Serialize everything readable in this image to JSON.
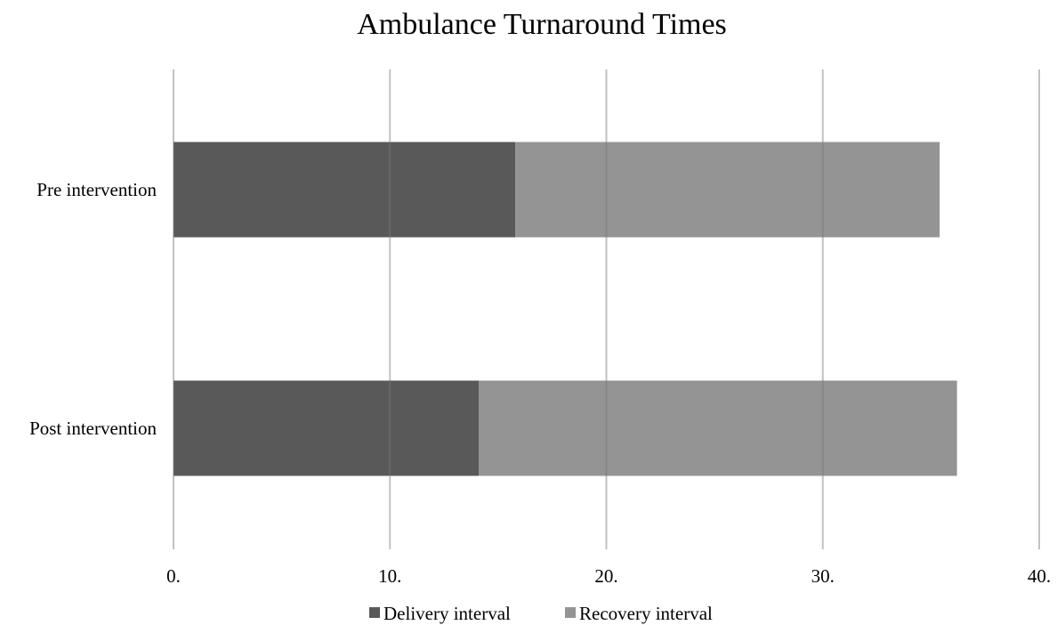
{
  "chart_data": {
    "type": "bar",
    "orientation": "horizontal",
    "stacked": true,
    "title": "Ambulance Turnaround Times",
    "xlabel": "",
    "ylabel": "",
    "categories": [
      "Pre intervention",
      "Post intervention"
    ],
    "series": [
      {
        "name": "Delivery interval",
        "color": "#595959",
        "values": [
          15.8,
          14.1
        ]
      },
      {
        "name": "Recovery interval",
        "color": "#949494",
        "values": [
          19.6,
          22.1
        ]
      }
    ],
    "xlim": [
      0,
      40
    ],
    "x_ticks": [
      0,
      10,
      20,
      30,
      40
    ],
    "x_tick_labels": [
      "0.",
      "10.",
      "20.",
      "30.",
      "40."
    ],
    "grid": "vertical",
    "legend": "bottom"
  }
}
